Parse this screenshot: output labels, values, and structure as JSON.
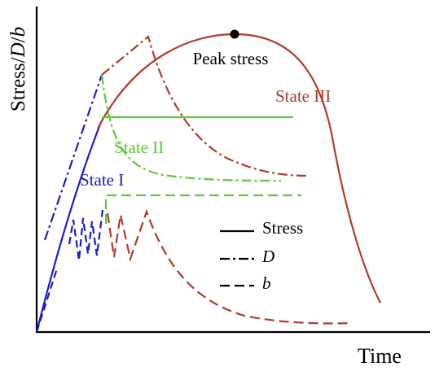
{
  "axes": {
    "y_label": [
      "Stress/",
      "D",
      "/",
      "b"
    ],
    "x_label": "Time"
  },
  "annotations": {
    "peak": "Peak stress",
    "state_1": "State I",
    "state_2": "State II",
    "state_3": "State III"
  },
  "legend": [
    "Stress",
    "D",
    "b"
  ]
}
